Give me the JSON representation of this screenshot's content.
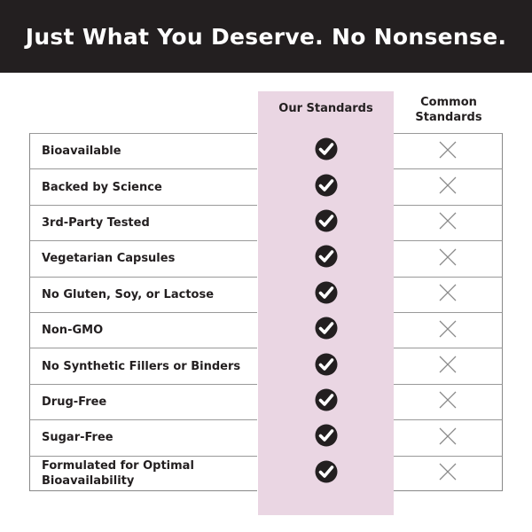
{
  "title": "Just What You Deserve. No Nonsense.",
  "columns": {
    "ours": "Our Standards",
    "common": "Common Standards"
  },
  "colors": {
    "banner": "#231f20",
    "highlight": "#ead6e3",
    "check": "#231f20",
    "cross": "#8a8a8a"
  },
  "icons": {
    "ours": "check-circle-icon",
    "common": "x-icon"
  },
  "rows": [
    {
      "label": "Bioavailable",
      "ours": true,
      "common": false
    },
    {
      "label": "Backed by Science",
      "ours": true,
      "common": false
    },
    {
      "label": "3rd-Party Tested",
      "ours": true,
      "common": false
    },
    {
      "label": "Vegetarian Capsules",
      "ours": true,
      "common": false
    },
    {
      "label": "No Gluten, Soy, or Lactose",
      "ours": true,
      "common": false
    },
    {
      "label": "Non-GMO",
      "ours": true,
      "common": false
    },
    {
      "label": "No Synthetic Fillers or Binders",
      "ours": true,
      "common": false
    },
    {
      "label": "Drug-Free",
      "ours": true,
      "common": false
    },
    {
      "label": "Sugar-Free",
      "ours": true,
      "common": false
    },
    {
      "label": "Formulated for Optimal Bioavailability",
      "ours": true,
      "common": false
    }
  ]
}
